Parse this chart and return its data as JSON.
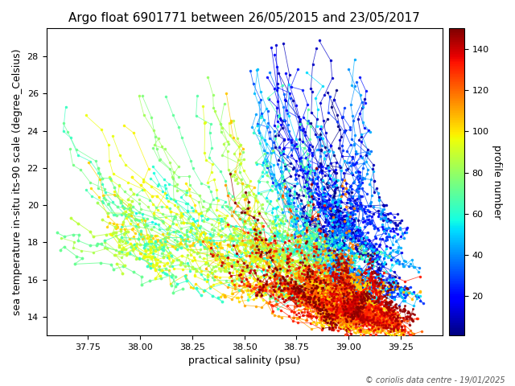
{
  "title": "Argo float 6901771 between 26/05/2015 and 23/05/2017",
  "xlabel": "practical salinity (psu)",
  "ylabel": "sea temperature in-situ its-90 scale (degree_Celsius)",
  "colorbar_label": "profile number",
  "cmap": "jet",
  "xlim": [
    37.55,
    39.45
  ],
  "ylim": [
    13.0,
    29.5
  ],
  "xticks": [
    37.75,
    38.0,
    38.25,
    38.5,
    38.75,
    39.0,
    39.25
  ],
  "yticks": [
    14,
    16,
    18,
    20,
    22,
    24,
    26,
    28
  ],
  "colorbar_ticks": [
    20,
    40,
    60,
    80,
    100,
    120,
    140
  ],
  "vmin": 1,
  "vmax": 150,
  "n_profiles": 150,
  "copyright_text": "© coriolis data centre - 19/01/2025",
  "title_fontsize": 11,
  "label_fontsize": 9,
  "tick_fontsize": 8,
  "colorbar_fontsize": 9,
  "copyright_fontsize": 7,
  "figsize": [
    6.4,
    4.8
  ],
  "dpi": 100
}
